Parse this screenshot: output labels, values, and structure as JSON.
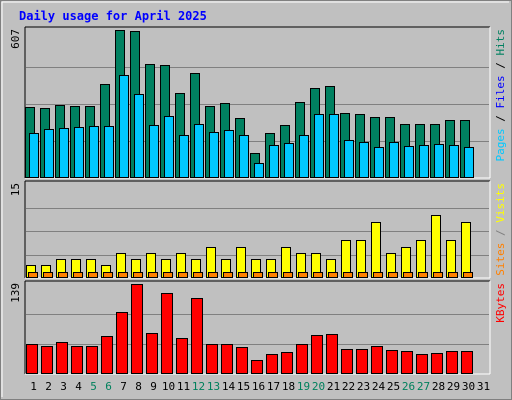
{
  "chart_data": {
    "type": "bar",
    "title": "Daily usage for April 2025",
    "days": [
      "1",
      "2",
      "3",
      "4",
      "5",
      "6",
      "7",
      "8",
      "9",
      "10",
      "11",
      "12",
      "13",
      "14",
      "15",
      "16",
      "17",
      "18",
      "19",
      "20",
      "21",
      "22",
      "23",
      "24",
      "25",
      "26",
      "27",
      "28",
      "29",
      "30",
      "31"
    ],
    "weekend_days": [
      "5",
      "6",
      "12",
      "13",
      "19",
      "20",
      "26",
      "27"
    ],
    "panels": [
      {
        "id": "hits-files-pages",
        "max_label": "607",
        "ymax": 607,
        "legend": [
          {
            "text": "Pages",
            "color": "#00c8ff"
          },
          {
            "text": "Files",
            "color": "#0000ff"
          },
          {
            "text": "Hits",
            "color": "#008060"
          }
        ],
        "series": [
          {
            "name": "Hits",
            "color": "#008060",
            "values": [
              290,
              286,
              300,
              296,
              296,
              385,
              607,
              602,
              466,
              462,
              347,
              432,
              297,
              309,
              246,
              103,
              184,
              216,
              310,
              369,
              379,
              266,
              262,
              251,
              252,
              220,
              220,
              220,
              237,
              238,
              null
            ]
          },
          {
            "name": "Files",
            "values": []
          },
          {
            "name": "Pages",
            "color": "#00c8ff",
            "values": [
              184,
              202,
              207,
              210,
              213,
              215,
              422,
              346,
              219,
              254,
              178,
              221,
              188,
              195,
              176,
              62,
              137,
              145,
              176,
              264,
              264,
              155,
              146,
              126,
              147,
              131,
              136,
              138,
              136,
              127,
              null
            ]
          }
        ]
      },
      {
        "id": "visits-sites",
        "max_label": "15",
        "ymax": 15,
        "legend": [
          {
            "text": "Sites",
            "color": "#ff8000"
          },
          {
            "text": "/",
            "color": "#808080"
          },
          {
            "text": "Visits",
            "color": "#ffff00"
          }
        ],
        "series": [
          {
            "name": "Visits",
            "color": "#ffff00",
            "values": [
              2,
              2,
              3,
              3,
              3,
              2,
              4,
              3,
              4,
              3,
              4,
              3,
              5,
              3,
              5,
              3,
              3,
              5,
              4,
              4,
              3,
              6,
              6,
              9,
              4,
              5,
              6,
              10,
              6,
              9,
              null
            ]
          },
          {
            "name": "Sites",
            "color": "#ff8000",
            "values": [
              1,
              1,
              1,
              1,
              1,
              1,
              1,
              1,
              1,
              1,
              1,
              1,
              1,
              1,
              1,
              1,
              1,
              1,
              1,
              1,
              1,
              1,
              1,
              1,
              1,
              1,
              1,
              1,
              1,
              1,
              null
            ]
          }
        ]
      },
      {
        "id": "kbytes",
        "max_label": "139",
        "ymax": 139,
        "legend": [
          {
            "text": "KBytes",
            "color": "#ff0000"
          }
        ],
        "series": [
          {
            "name": "KBytes",
            "color": "#ff0000",
            "values": [
              46,
              44,
              50,
              43,
              43,
              59,
              96,
              139,
              63,
              125,
              56,
              117,
              47,
              46,
              42,
              22,
              31,
              34,
              47,
              61,
              62,
              39,
              39,
              44,
              37,
              35,
              31,
              33,
              35,
              35,
              null
            ]
          }
        ]
      }
    ]
  }
}
